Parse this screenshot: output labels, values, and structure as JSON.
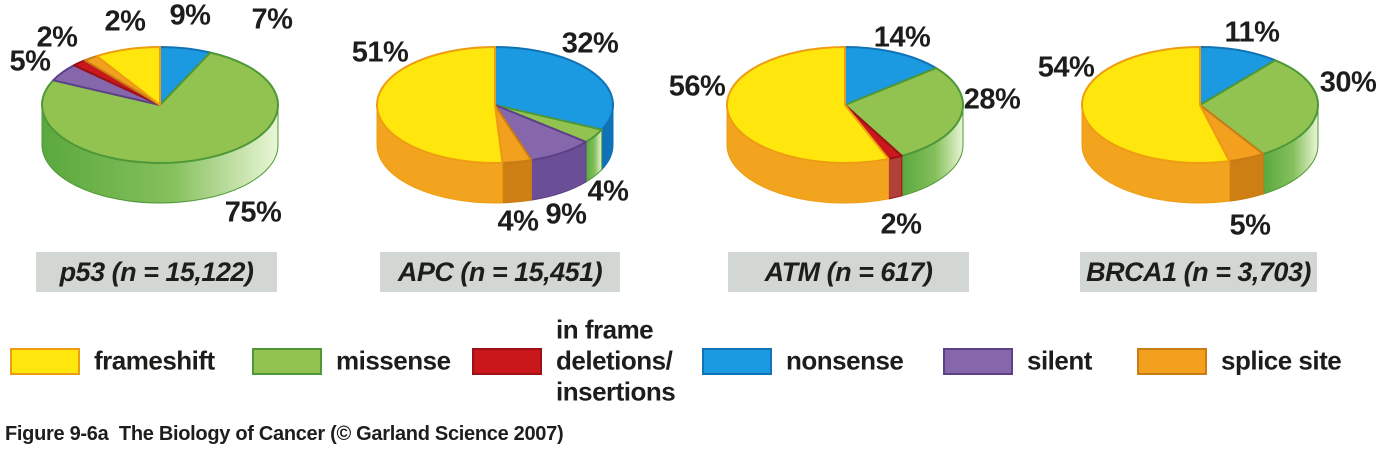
{
  "figure": {
    "caption": "Figure 9-6a  The Biology of Cancer (© Garland Science 2007)"
  },
  "colors": {
    "frameshift": {
      "top": "#FFE60C",
      "side": "#F2A41E",
      "edge": "#EE9D13"
    },
    "missense": {
      "top": "#92C351",
      "side": "gradient-green",
      "edge": "#4E9838"
    },
    "inframe": {
      "top": "#C9171C",
      "side": "#B04038",
      "edge": "#9C1116"
    },
    "nonsense": {
      "top": "#1B9AE1",
      "side": "#0F71B8",
      "edge": "#1173B4"
    },
    "silent": {
      "top": "#8767AC",
      "side": "#6A4E96",
      "edge": "#5C4189"
    },
    "splice": {
      "top": "#F3A01F",
      "side": "#CE7F14",
      "edge": "#C87C15"
    }
  },
  "legend": {
    "items": [
      {
        "key": "frameshift",
        "lines": [
          "frameshift"
        ]
      },
      {
        "key": "missense",
        "lines": [
          "missense"
        ]
      },
      {
        "key": "inframe",
        "lines": [
          "in frame",
          "deletions/",
          "insertions"
        ]
      },
      {
        "key": "nonsense",
        "lines": [
          "nonsense"
        ]
      },
      {
        "key": "silent",
        "lines": [
          "silent"
        ]
      },
      {
        "key": "splice",
        "lines": [
          "splice site"
        ]
      }
    ]
  },
  "chart_data": [
    {
      "type": "pie",
      "gene": "p53",
      "n": "15,122",
      "title": "p53 (n = 15,122)",
      "start_angle_deg": -90,
      "direction": "clockwise",
      "slices": [
        {
          "category": "nonsense",
          "pct": 7
        },
        {
          "category": "missense",
          "pct": 75
        },
        {
          "category": "silent",
          "pct": 5
        },
        {
          "category": "inframe",
          "pct": 2
        },
        {
          "category": "splice",
          "pct": 2
        },
        {
          "category": "frameshift",
          "pct": 9
        }
      ]
    },
    {
      "type": "pie",
      "gene": "APC",
      "n": "15,451",
      "title": "APC (n = 15,451)",
      "start_angle_deg": -90,
      "direction": "clockwise",
      "slices": [
        {
          "category": "nonsense",
          "pct": 32
        },
        {
          "category": "missense",
          "pct": 4
        },
        {
          "category": "silent",
          "pct": 9
        },
        {
          "category": "splice",
          "pct": 4
        },
        {
          "category": "frameshift",
          "pct": 51
        }
      ]
    },
    {
      "type": "pie",
      "gene": "ATM",
      "n": "617",
      "title": "ATM (n = 617)",
      "start_angle_deg": -90,
      "direction": "clockwise",
      "slices": [
        {
          "category": "nonsense",
          "pct": 14
        },
        {
          "category": "missense",
          "pct": 28
        },
        {
          "category": "inframe",
          "pct": 2
        },
        {
          "category": "frameshift",
          "pct": 56
        }
      ]
    },
    {
      "type": "pie",
      "gene": "BRCA1",
      "n": "3,703",
      "title": "BRCA1 (n = 3,703)",
      "start_angle_deg": -90,
      "direction": "clockwise",
      "slices": [
        {
          "category": "nonsense",
          "pct": 11
        },
        {
          "category": "missense",
          "pct": 30
        },
        {
          "category": "splice",
          "pct": 5
        },
        {
          "category": "frameshift",
          "pct": 54
        }
      ]
    }
  ]
}
